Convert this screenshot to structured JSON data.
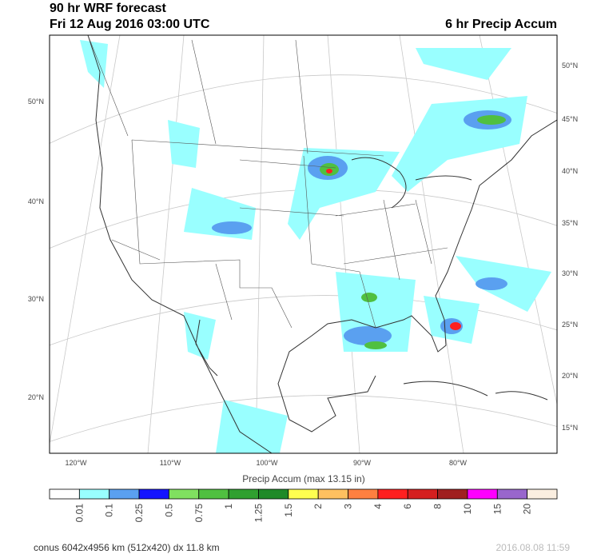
{
  "header": {
    "title_line1": "90 hr WRF forecast",
    "title_line2": "Fri 12 Aug 2016 03:00 UTC",
    "title_right": "6 hr Precip Accum"
  },
  "map": {
    "lon_labels": [
      "120°W",
      "110°W",
      "100°W",
      "90°W",
      "80°W"
    ],
    "lat_labels_left": [
      "50°N",
      "40°N",
      "30°N",
      "20°N"
    ],
    "lat_labels_right": [
      "50°N",
      "45°N",
      "40°N",
      "35°N",
      "30°N",
      "25°N",
      "20°N",
      "15°N"
    ]
  },
  "colorbar": {
    "title": "Precip Accum (max 13.15 in)",
    "labels": [
      "0.01",
      "0.1",
      "0.25",
      "0.5",
      "0.75",
      "1",
      "1.25",
      "1.5",
      "2",
      "3",
      "4",
      "6",
      "8",
      "10",
      "15",
      "20"
    ],
    "colors": [
      "#ffffff",
      "#99ffff",
      "#5aa0f0",
      "#1414ff",
      "#80e060",
      "#50c040",
      "#30a030",
      "#208a28",
      "#ffff50",
      "#ffc060",
      "#ff8040",
      "#ff2020",
      "#d42020",
      "#a02020",
      "#ff00ff",
      "#9966cc",
      "#faeee0"
    ]
  },
  "footer": {
    "left": "conus 6042x4956 km (512x420) dx 11.8 km",
    "right": "2016.08.08 11:59"
  }
}
